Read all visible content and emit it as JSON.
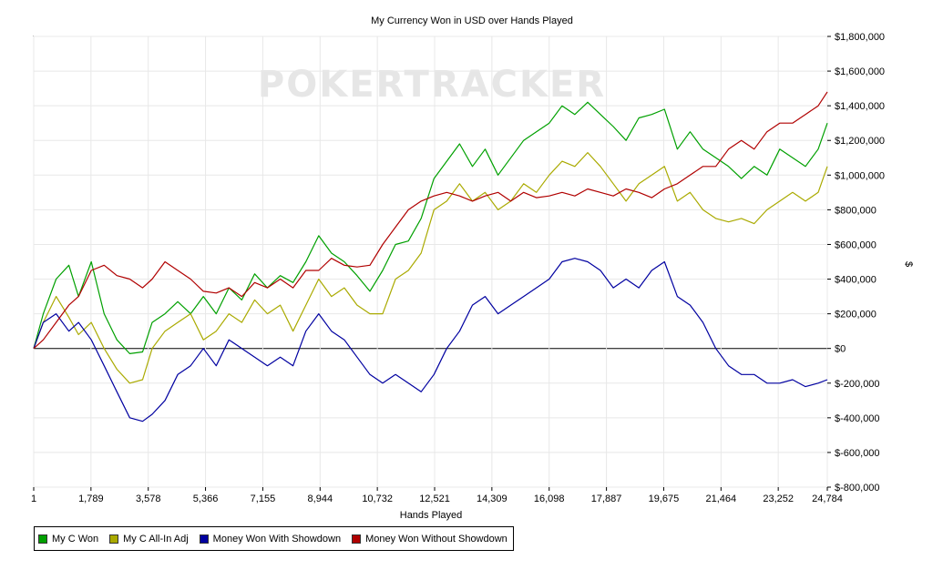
{
  "chart_data": {
    "type": "line",
    "title": "My Currency Won in USD over Hands Played",
    "xlabel": "Hands Played",
    "ylabel": "$",
    "xlim": [
      1,
      24784
    ],
    "ylim": [
      -800000,
      1800000
    ],
    "x_ticks": [
      1,
      1789,
      3578,
      5366,
      7155,
      8944,
      10732,
      12521,
      14309,
      16098,
      17887,
      19675,
      21464,
      23252,
      24784
    ],
    "x_tick_labels": [
      "1",
      "1,789",
      "3,578",
      "5,366",
      "7,155",
      "8,944",
      "10,732",
      "12,521",
      "14,309",
      "16,098",
      "17,887",
      "19,675",
      "21,464",
      "23,252",
      "24,784"
    ],
    "y_ticks": [
      1800000,
      1600000,
      1400000,
      1200000,
      1000000,
      800000,
      600000,
      400000,
      200000,
      0,
      -200000,
      -400000,
      -600000,
      -800000
    ],
    "y_tick_labels": [
      "$1,800,000",
      "$1,600,000",
      "$1,400,000",
      "$1,200,000",
      "$1,000,000",
      "$800,000",
      "$600,000",
      "$400,000",
      "$200,000",
      "$0",
      "$-200,000",
      "$-400,000",
      "$-600,000",
      "$-800,000"
    ],
    "watermark": "POKERTRACKER",
    "grid": true,
    "legend_position": "bottom-left",
    "series": [
      {
        "name": "My C Won",
        "color": "#00a000",
        "x": [
          1,
          300,
          700,
          1100,
          1400,
          1800,
          2200,
          2600,
          3000,
          3400,
          3700,
          4100,
          4500,
          4900,
          5300,
          5700,
          6100,
          6500,
          6900,
          7300,
          7700,
          8100,
          8500,
          8900,
          9300,
          9700,
          10100,
          10500,
          10900,
          11300,
          11700,
          12100,
          12500,
          12900,
          13300,
          13700,
          14100,
          14500,
          14900,
          15300,
          15700,
          16100,
          16500,
          16900,
          17300,
          17700,
          18100,
          18500,
          18900,
          19300,
          19700,
          20100,
          20500,
          20900,
          21300,
          21700,
          22100,
          22500,
          22900,
          23300,
          23700,
          24100,
          24500,
          24784
        ],
        "y": [
          0,
          200000,
          400000,
          480000,
          300000,
          500000,
          200000,
          50000,
          -30000,
          -20000,
          150000,
          200000,
          270000,
          200000,
          300000,
          200000,
          350000,
          280000,
          430000,
          350000,
          420000,
          380000,
          500000,
          650000,
          550000,
          500000,
          420000,
          330000,
          450000,
          600000,
          620000,
          750000,
          980000,
          1080000,
          1180000,
          1050000,
          1150000,
          1000000,
          1100000,
          1200000,
          1250000,
          1300000,
          1400000,
          1350000,
          1420000,
          1350000,
          1280000,
          1200000,
          1330000,
          1350000,
          1380000,
          1150000,
          1250000,
          1150000,
          1100000,
          1050000,
          980000,
          1050000,
          1000000,
          1150000,
          1100000,
          1050000,
          1150000,
          1300000
        ]
      },
      {
        "name": "My C All-In Adj",
        "color": "#aaaa00",
        "x": [
          1,
          300,
          700,
          1100,
          1400,
          1800,
          2200,
          2600,
          3000,
          3400,
          3700,
          4100,
          4500,
          4900,
          5300,
          5700,
          6100,
          6500,
          6900,
          7300,
          7700,
          8100,
          8500,
          8900,
          9300,
          9700,
          10100,
          10500,
          10900,
          11300,
          11700,
          12100,
          12500,
          12900,
          13300,
          13700,
          14100,
          14500,
          14900,
          15300,
          15700,
          16100,
          16500,
          16900,
          17300,
          17700,
          18100,
          18500,
          18900,
          19300,
          19700,
          20100,
          20500,
          20900,
          21300,
          21700,
          22100,
          22500,
          22900,
          23300,
          23700,
          24100,
          24500,
          24784
        ],
        "y": [
          0,
          150000,
          300000,
          180000,
          80000,
          150000,
          0,
          -120000,
          -200000,
          -180000,
          0,
          100000,
          150000,
          200000,
          50000,
          100000,
          200000,
          150000,
          280000,
          200000,
          250000,
          100000,
          250000,
          400000,
          300000,
          350000,
          250000,
          200000,
          200000,
          400000,
          450000,
          550000,
          800000,
          850000,
          950000,
          850000,
          900000,
          800000,
          850000,
          950000,
          900000,
          1000000,
          1080000,
          1050000,
          1130000,
          1050000,
          950000,
          850000,
          950000,
          1000000,
          1050000,
          850000,
          900000,
          800000,
          750000,
          730000,
          750000,
          720000,
          800000,
          850000,
          900000,
          850000,
          900000,
          1050000
        ]
      },
      {
        "name": "Money Won With Showdown",
        "color": "#0000a0",
        "x": [
          1,
          300,
          700,
          1100,
          1400,
          1800,
          2200,
          2600,
          3000,
          3400,
          3700,
          4100,
          4500,
          4900,
          5300,
          5700,
          6100,
          6500,
          6900,
          7300,
          7700,
          8100,
          8500,
          8900,
          9300,
          9700,
          10100,
          10500,
          10900,
          11300,
          11700,
          12100,
          12500,
          12900,
          13300,
          13700,
          14100,
          14500,
          14900,
          15300,
          15700,
          16100,
          16500,
          16900,
          17300,
          17700,
          18100,
          18500,
          18900,
          19300,
          19700,
          20100,
          20500,
          20900,
          21300,
          21700,
          22100,
          22500,
          22900,
          23300,
          23700,
          24100,
          24500,
          24784
        ],
        "y": [
          0,
          150000,
          200000,
          100000,
          150000,
          50000,
          -100000,
          -250000,
          -400000,
          -420000,
          -380000,
          -300000,
          -150000,
          -100000,
          0,
          -100000,
          50000,
          0,
          -50000,
          -100000,
          -50000,
          -100000,
          100000,
          200000,
          100000,
          50000,
          -50000,
          -150000,
          -200000,
          -150000,
          -200000,
          -250000,
          -150000,
          0,
          100000,
          250000,
          300000,
          200000,
          250000,
          300000,
          350000,
          400000,
          500000,
          520000,
          500000,
          450000,
          350000,
          400000,
          350000,
          450000,
          500000,
          300000,
          250000,
          150000,
          0,
          -100000,
          -150000,
          -150000,
          -200000,
          -200000,
          -180000,
          -220000,
          -200000,
          -180000
        ]
      },
      {
        "name": "Money Won Without Showdown",
        "color": "#b00000",
        "x": [
          1,
          300,
          700,
          1100,
          1400,
          1800,
          2200,
          2600,
          3000,
          3400,
          3700,
          4100,
          4500,
          4900,
          5300,
          5700,
          6100,
          6500,
          6900,
          7300,
          7700,
          8100,
          8500,
          8900,
          9300,
          9700,
          10100,
          10500,
          10900,
          11300,
          11700,
          12100,
          12500,
          12900,
          13300,
          13700,
          14100,
          14500,
          14900,
          15300,
          15700,
          16100,
          16500,
          16900,
          17300,
          17700,
          18100,
          18500,
          18900,
          19300,
          19700,
          20100,
          20500,
          20900,
          21300,
          21700,
          22100,
          22500,
          22900,
          23300,
          23700,
          24100,
          24500,
          24784
        ],
        "y": [
          0,
          50000,
          150000,
          250000,
          300000,
          450000,
          480000,
          420000,
          400000,
          350000,
          400000,
          500000,
          450000,
          400000,
          330000,
          320000,
          350000,
          300000,
          380000,
          350000,
          400000,
          350000,
          450000,
          450000,
          520000,
          480000,
          470000,
          480000,
          600000,
          700000,
          800000,
          850000,
          880000,
          900000,
          880000,
          850000,
          880000,
          900000,
          850000,
          900000,
          870000,
          880000,
          900000,
          880000,
          920000,
          900000,
          880000,
          920000,
          900000,
          870000,
          920000,
          950000,
          1000000,
          1050000,
          1050000,
          1150000,
          1200000,
          1150000,
          1250000,
          1300000,
          1300000,
          1350000,
          1400000,
          1480000
        ]
      }
    ]
  }
}
